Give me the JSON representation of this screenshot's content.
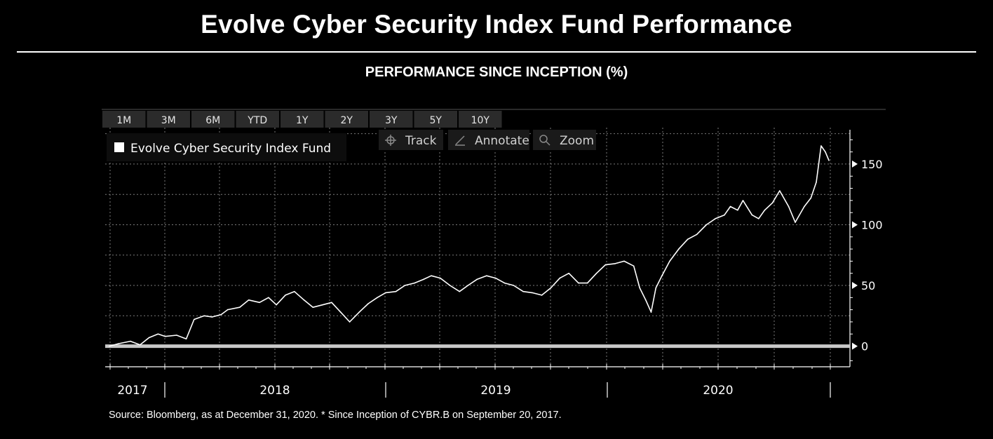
{
  "header": {
    "title": "Evolve Cyber Security Index Fund Performance",
    "subtitle": "PERFORMANCE SINCE INCEPTION (%)"
  },
  "toolbar": {
    "periods": [
      "1M",
      "3M",
      "6M",
      "YTD",
      "1Y",
      "2Y",
      "3Y",
      "5Y",
      "10Y"
    ],
    "tools": [
      {
        "label": "Track",
        "icon": "crosshair-icon"
      },
      {
        "label": "Annotate",
        "icon": "pencil-icon"
      },
      {
        "label": "Zoom",
        "icon": "magnifier-icon"
      }
    ]
  },
  "legend": {
    "label": "Evolve Cyber Security Index Fund"
  },
  "footer": {
    "source": "Source: Bloomberg, as at December 31, 2020. * Since Inception of CYBR.B on September 20, 2017."
  },
  "colors": {
    "background": "#000000",
    "line": "#ffffff",
    "zero_line": "#c8c8c8",
    "grid": "#7a7a7a"
  },
  "chart_data": {
    "type": "line",
    "title": "",
    "xlabel": "",
    "ylabel": "",
    "xlim": [
      "2017-09-20",
      "2020-12-31"
    ],
    "ylim": [
      -17,
      180
    ],
    "y_ticks": [
      0,
      50,
      100,
      150
    ],
    "x_year_labels": [
      "2017",
      "2018",
      "2019",
      "2020"
    ],
    "grid": true,
    "legend_position": "top-left",
    "series": [
      {
        "name": "Evolve Cyber Security Index Fund",
        "x": [
          "2017-09-20",
          "2017-10-05",
          "2017-10-25",
          "2017-11-10",
          "2017-11-25",
          "2017-12-10",
          "2017-12-22",
          "2018-01-10",
          "2018-01-26",
          "2018-02-08",
          "2018-02-25",
          "2018-03-10",
          "2018-03-25",
          "2018-04-05",
          "2018-04-25",
          "2018-05-10",
          "2018-05-28",
          "2018-06-12",
          "2018-06-25",
          "2018-07-10",
          "2018-07-25",
          "2018-08-10",
          "2018-08-25",
          "2018-09-10",
          "2018-09-25",
          "2018-10-10",
          "2018-10-25",
          "2018-11-10",
          "2018-11-25",
          "2018-12-10",
          "2018-12-24",
          "2019-01-10",
          "2019-01-25",
          "2019-02-10",
          "2019-02-25",
          "2019-03-10",
          "2019-03-25",
          "2019-04-10",
          "2019-04-26",
          "2019-05-10",
          "2019-05-25",
          "2019-06-10",
          "2019-06-25",
          "2019-07-10",
          "2019-07-25",
          "2019-08-10",
          "2019-08-25",
          "2019-09-10",
          "2019-09-25",
          "2019-10-10",
          "2019-10-25",
          "2019-11-10",
          "2019-11-25",
          "2019-12-10",
          "2019-12-25",
          "2020-01-10",
          "2020-01-25",
          "2020-02-10",
          "2020-02-20",
          "2020-03-01",
          "2020-03-10",
          "2020-03-18",
          "2020-03-28",
          "2020-04-10",
          "2020-04-25",
          "2020-05-10",
          "2020-05-25",
          "2020-06-10",
          "2020-06-25",
          "2020-07-10",
          "2020-07-20",
          "2020-08-01",
          "2020-08-10",
          "2020-08-25",
          "2020-09-05",
          "2020-09-15",
          "2020-09-28",
          "2020-10-10",
          "2020-10-25",
          "2020-11-05",
          "2020-11-20",
          "2020-12-01",
          "2020-12-10",
          "2020-12-18",
          "2020-12-25",
          "2020-12-31"
        ],
        "y": [
          0,
          2,
          4,
          1,
          7,
          10,
          8,
          9,
          6,
          22,
          25,
          24,
          26,
          30,
          32,
          38,
          36,
          40,
          34,
          42,
          45,
          38,
          32,
          34,
          36,
          28,
          20,
          28,
          35,
          40,
          44,
          45,
          50,
          52,
          55,
          58,
          56,
          50,
          45,
          50,
          55,
          58,
          56,
          52,
          50,
          45,
          44,
          42,
          48,
          56,
          60,
          52,
          52,
          60,
          67,
          68,
          70,
          66,
          48,
          38,
          28,
          48,
          58,
          70,
          80,
          88,
          92,
          100,
          105,
          108,
          115,
          112,
          120,
          108,
          105,
          112,
          118,
          128,
          115,
          102,
          115,
          122,
          135,
          165,
          160,
          153
        ]
      }
    ]
  }
}
